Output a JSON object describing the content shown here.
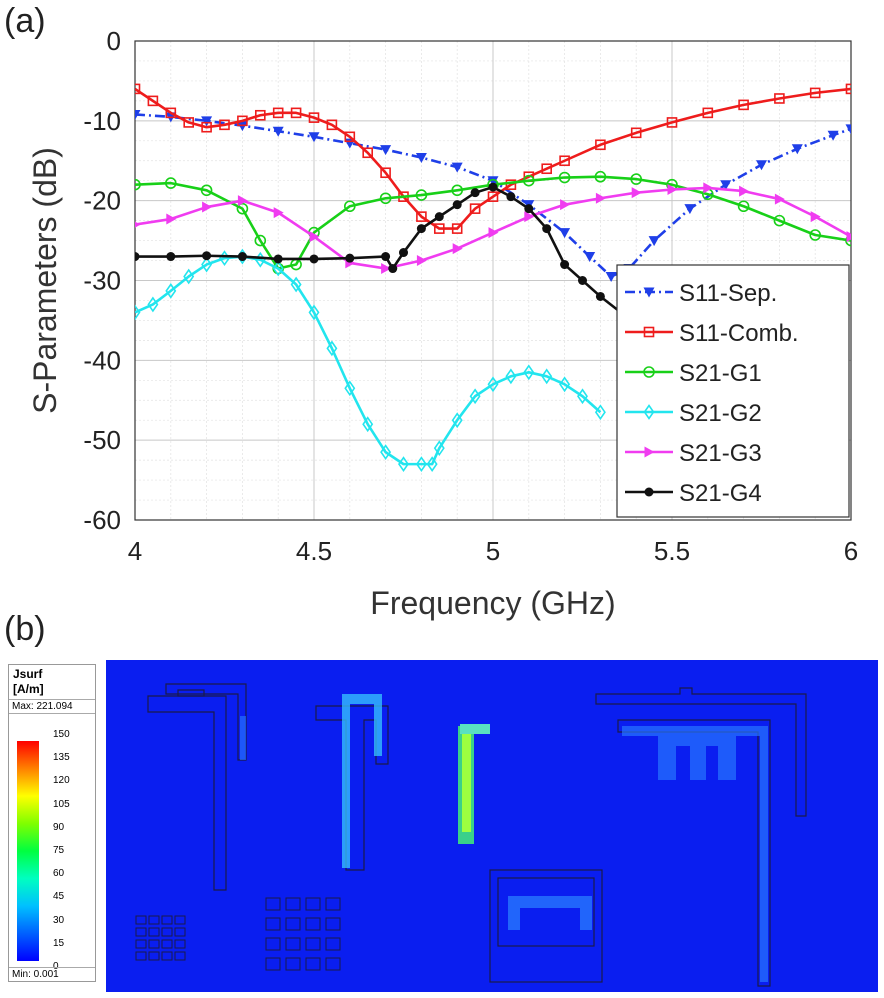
{
  "panel_a_label": "(a)",
  "panel_b_label": "(b)",
  "chart_data": {
    "type": "line",
    "xlabel": "Frequency (GHz)",
    "ylabel": "S-Parameters (dB)",
    "xlim": [
      4,
      6
    ],
    "ylim": [
      -60,
      0
    ],
    "xticks": [
      "4",
      "4.5",
      "5",
      "5.5",
      "6"
    ],
    "yticks": [
      "0",
      "-10",
      "-20",
      "-30",
      "-40",
      "-50",
      "-60"
    ],
    "grid": "on (major and minor)",
    "legend_position": "bottom-right",
    "series": [
      {
        "name": "S11-Sep.",
        "color": "#1f3fe8",
        "marker": "triangle-down",
        "dash": "dash-dot",
        "x": [
          4.0,
          4.1,
          4.2,
          4.3,
          4.4,
          4.5,
          4.6,
          4.7,
          4.8,
          4.9,
          5.0,
          5.1,
          5.2,
          5.27,
          5.33,
          5.38,
          5.45,
          5.55,
          5.65,
          5.75,
          5.85,
          5.95,
          6.0
        ],
        "y": [
          -9.2,
          -9.5,
          -10.0,
          -10.6,
          -11.3,
          -12.0,
          -12.8,
          -13.6,
          -14.6,
          -15.8,
          -17.5,
          -20.5,
          -24.0,
          -27.0,
          -29.5,
          -28.5,
          -25.0,
          -21.0,
          -18.0,
          -15.5,
          -13.5,
          -11.8,
          -11.0
        ]
      },
      {
        "name": "S11-Comb.",
        "color": "#ee1c1c",
        "marker": "square",
        "x": [
          4.0,
          4.05,
          4.1,
          4.15,
          4.2,
          4.25,
          4.3,
          4.35,
          4.4,
          4.45,
          4.5,
          4.55,
          4.6,
          4.65,
          4.7,
          4.75,
          4.8,
          4.85,
          4.9,
          4.95,
          5.0,
          5.05,
          5.1,
          5.15,
          5.2,
          5.3,
          5.4,
          5.5,
          5.6,
          5.7,
          5.8,
          5.9,
          6.0
        ],
        "y": [
          -6.0,
          -7.5,
          -9.0,
          -10.2,
          -10.8,
          -10.5,
          -10.0,
          -9.3,
          -9.0,
          -9.0,
          -9.6,
          -10.5,
          -12.0,
          -14.0,
          -16.5,
          -19.5,
          -22.0,
          -23.5,
          -23.5,
          -21.0,
          -19.5,
          -18.0,
          -17.0,
          -16.0,
          -15.0,
          -13.0,
          -11.5,
          -10.2,
          -9.0,
          -8.0,
          -7.2,
          -6.5,
          -6.0
        ]
      },
      {
        "name": "S21-G1",
        "color": "#18d018",
        "marker": "circle",
        "x": [
          4.0,
          4.1,
          4.2,
          4.3,
          4.35,
          4.4,
          4.45,
          4.5,
          4.6,
          4.7,
          4.8,
          4.9,
          5.0,
          5.1,
          5.2,
          5.3,
          5.4,
          5.5,
          5.6,
          5.7,
          5.8,
          5.9,
          6.0
        ],
        "y": [
          -18.0,
          -17.8,
          -18.7,
          -21.0,
          -25.0,
          -28.5,
          -28.0,
          -24.0,
          -20.7,
          -19.7,
          -19.3,
          -18.7,
          -18.0,
          -17.5,
          -17.1,
          -17.0,
          -17.3,
          -18.0,
          -19.2,
          -20.7,
          -22.5,
          -24.3,
          -25.0
        ]
      },
      {
        "name": "S21-G2",
        "color": "#22e5ee",
        "marker": "diamond",
        "x": [
          4.0,
          4.05,
          4.1,
          4.15,
          4.2,
          4.25,
          4.3,
          4.35,
          4.4,
          4.45,
          4.5,
          4.55,
          4.6,
          4.65,
          4.7,
          4.75,
          4.8,
          4.83,
          4.85,
          4.9,
          4.95,
          5.0,
          5.05,
          5.1,
          5.15,
          5.2,
          5.25,
          5.3
        ],
        "y": [
          -34.0,
          -33.0,
          -31.3,
          -29.5,
          -28.0,
          -27.2,
          -27.0,
          -27.4,
          -28.5,
          -30.5,
          -34.0,
          -38.5,
          -43.5,
          -48.0,
          -51.5,
          -53.0,
          -53.0,
          -53.0,
          -51.0,
          -47.5,
          -44.5,
          -43.0,
          -42.0,
          -41.5,
          -42.0,
          -43.0,
          -44.5,
          -46.5
        ]
      },
      {
        "name": "S21-G3",
        "color": "#f03cf0",
        "marker": "triangle-right",
        "x": [
          4.0,
          4.1,
          4.2,
          4.3,
          4.4,
          4.5,
          4.6,
          4.7,
          4.8,
          4.9,
          5.0,
          5.1,
          5.2,
          5.3,
          5.4,
          5.5,
          5.6,
          5.7,
          5.8,
          5.9,
          6.0
        ],
        "y": [
          -23.0,
          -22.3,
          -20.8,
          -20.0,
          -21.5,
          -24.5,
          -27.8,
          -28.5,
          -27.5,
          -26.0,
          -24.0,
          -22.0,
          -20.5,
          -19.7,
          -19.0,
          -18.6,
          -18.4,
          -18.8,
          -19.8,
          -22.0,
          -24.5
        ]
      },
      {
        "name": "S21-G4",
        "color": "#111111",
        "marker": "circle-filled",
        "x": [
          4.0,
          4.1,
          4.2,
          4.3,
          4.4,
          4.5,
          4.6,
          4.7,
          4.72,
          4.75,
          4.8,
          4.85,
          4.9,
          4.95,
          5.0,
          5.05,
          5.1,
          5.15,
          5.2,
          5.25,
          5.3,
          5.4
        ],
        "y": [
          -27.0,
          -27.0,
          -26.9,
          -27.0,
          -27.3,
          -27.3,
          -27.2,
          -27.0,
          -28.5,
          -26.5,
          -23.5,
          -22.0,
          -20.5,
          -19.0,
          -18.3,
          -19.5,
          -21.0,
          -23.5,
          -28.0,
          -30.0,
          -32.0,
          -35.5
        ]
      }
    ]
  },
  "field_legend": {
    "title_line1": "Jsurf",
    "title_line2": "[A/m]",
    "max_text": "Max: 221.094",
    "min_text": "Min:  0.001",
    "ticks": [
      "150",
      "135",
      "120",
      "105",
      "90",
      "75",
      "60",
      "45",
      "30",
      "15",
      "0"
    ]
  },
  "colors": {
    "background_field": "#0a1ef0",
    "trace_outline": "#1a1a4a",
    "current_hot": "#9cff40",
    "current_warm": "#38c8ff",
    "current_mild": "#2a7dff"
  }
}
